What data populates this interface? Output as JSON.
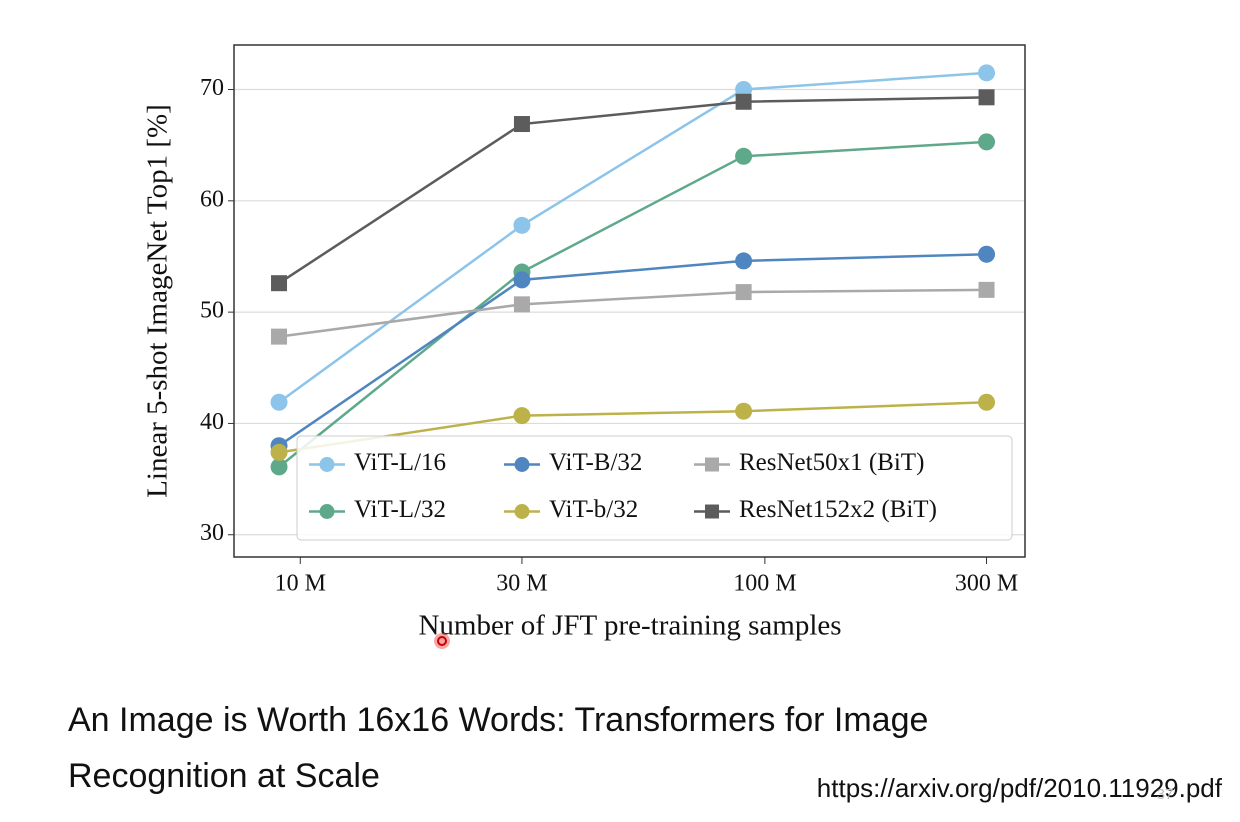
{
  "chart_data": {
    "type": "line",
    "x_label": "Number of JFT pre-training samples",
    "y_label": "Linear 5-shot ImageNet Top1 [%]",
    "x": [
      9000000,
      30000000,
      90000000,
      300000000
    ],
    "xscale": "log",
    "xlim": [
      7200000,
      363000000
    ],
    "xticks": [
      {
        "value": 10000000,
        "label": "10 M"
      },
      {
        "value": 30000000,
        "label": "30 M"
      },
      {
        "value": 100000000,
        "label": "100 M"
      },
      {
        "value": 300000000,
        "label": "300 M"
      }
    ],
    "ylim": [
      28,
      74
    ],
    "yticks": [
      30,
      40,
      50,
      60,
      70
    ],
    "grid": true,
    "legend": "lower right",
    "legend_columns": 3,
    "series": [
      {
        "name": "ViT-L/16",
        "color": "#8cc4ea",
        "marker": "circle",
        "values": [
          41.9,
          57.8,
          70.0,
          71.5
        ]
      },
      {
        "name": "ViT-L/32",
        "color": "#5ea98a",
        "marker": "circle",
        "values": [
          36.1,
          53.6,
          64.0,
          65.3
        ]
      },
      {
        "name": "ViT-B/32",
        "color": "#4f86bf",
        "marker": "circle",
        "values": [
          38.0,
          52.9,
          54.6,
          55.2
        ]
      },
      {
        "name": "ViT-b/32",
        "color": "#bdb24a",
        "marker": "circle",
        "values": [
          37.4,
          40.7,
          41.1,
          41.9
        ]
      },
      {
        "name": "ResNet50x1 (BiT)",
        "color": "#a9a9a9",
        "marker": "square",
        "values": [
          47.8,
          50.7,
          51.8,
          52.0
        ]
      },
      {
        "name": "ResNet152x2 (BiT)",
        "color": "#5c5c5c",
        "marker": "square",
        "values": [
          52.6,
          66.9,
          68.9,
          69.3
        ]
      }
    ]
  },
  "caption": [
    "An Image is Worth 16x16 Words: Transformers for Image",
    "Recognition at Scale"
  ],
  "url": "https://arxiv.org/pdf/2010.11929.pdf",
  "slide_number": "37"
}
